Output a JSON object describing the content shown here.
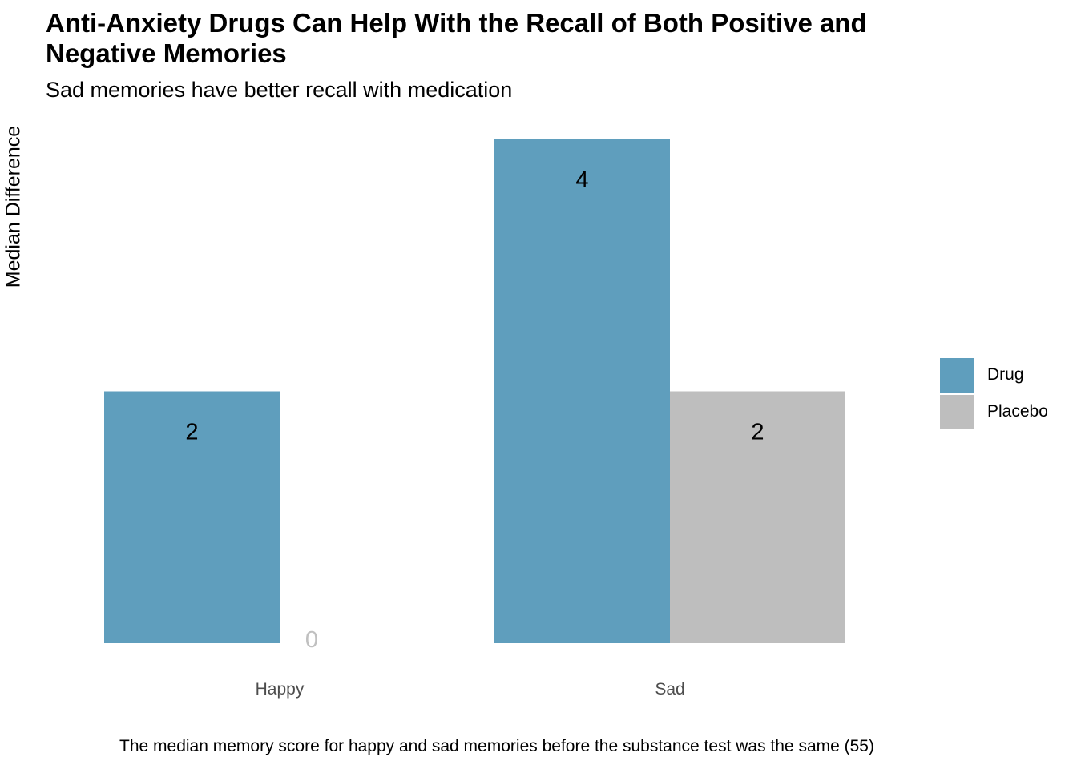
{
  "chart_data": {
    "type": "bar",
    "title": "Anti-Anxiety Drugs Can Help With the Recall of Both Positive and Negative Memories",
    "subtitle": "Sad memories have better recall with medication",
    "xlabel": "",
    "ylabel": "Median Difference",
    "caption": "The median memory score for happy and sad memories before the substance test was the same (55)",
    "categories": [
      "Happy",
      "Sad"
    ],
    "series": [
      {
        "name": "Drug",
        "values": [
          2,
          4
        ],
        "color": "#5f9ebd"
      },
      {
        "name": "Placebo",
        "values": [
          0,
          2
        ],
        "color": "#bebebe"
      }
    ],
    "data_labels": [
      [
        "2",
        "4"
      ],
      [
        "0",
        "2"
      ]
    ],
    "zero_label_color": "#c0c0c0",
    "ylim": [
      0,
      4
    ],
    "grid": false,
    "legend_position": "right"
  }
}
